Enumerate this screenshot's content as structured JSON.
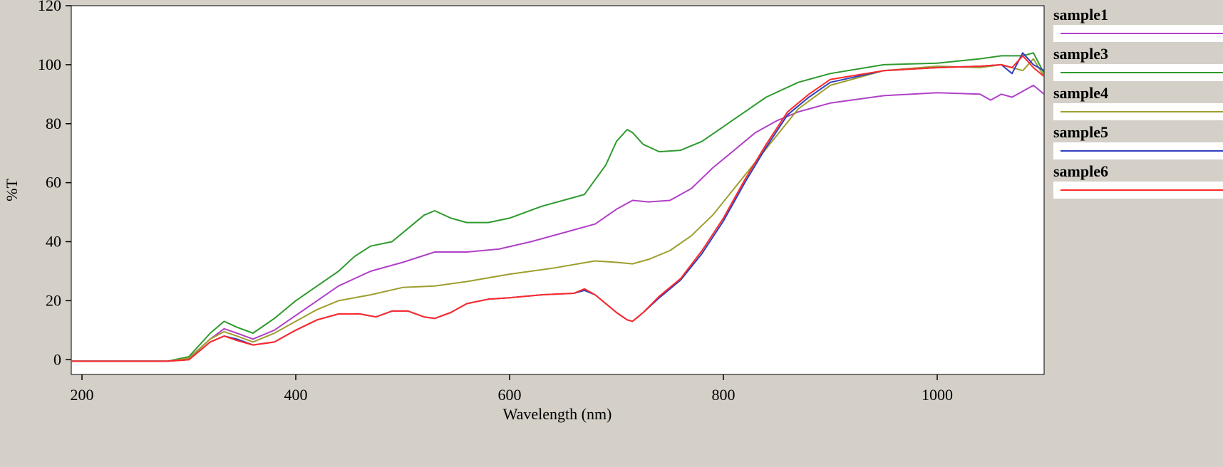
{
  "chart_data": {
    "type": "line",
    "xlabel": "Wavelength (nm)",
    "ylabel": "%T",
    "xlim": [
      190,
      1100
    ],
    "ylim": [
      -5,
      120
    ],
    "xticks": [
      200,
      400,
      600,
      800,
      1000
    ],
    "yticks": [
      0,
      20,
      40,
      60,
      80,
      100,
      120
    ],
    "grid": false,
    "legend_position": "right",
    "series": [
      {
        "name": "sample1",
        "color": "#b040c8",
        "x": [
          190,
          280,
          300,
          320,
          333,
          345,
          360,
          380,
          400,
          420,
          440,
          470,
          500,
          530,
          560,
          590,
          620,
          650,
          680,
          700,
          715,
          730,
          750,
          770,
          790,
          810,
          830,
          850,
          870,
          880,
          900,
          950,
          1000,
          1040,
          1050,
          1060,
          1070,
          1080,
          1090,
          1100
        ],
        "y": [
          -0.5,
          -0.5,
          0.5,
          7,
          10.5,
          9,
          7,
          10,
          15,
          20,
          25,
          30,
          33,
          36.5,
          36.5,
          37.5,
          40,
          43,
          46,
          51,
          54,
          53.5,
          54,
          58,
          65,
          71,
          77,
          81,
          84,
          85,
          87,
          89.5,
          90.5,
          90,
          88,
          90,
          89,
          91,
          93,
          90
        ]
      },
      {
        "name": "sample3",
        "color": "#2e9a2e",
        "x": [
          190,
          280,
          300,
          320,
          333,
          345,
          360,
          380,
          400,
          420,
          440,
          455,
          470,
          490,
          510,
          520,
          530,
          545,
          560,
          580,
          600,
          630,
          660,
          670,
          690,
          700,
          710,
          715,
          725,
          740,
          760,
          780,
          800,
          820,
          840,
          870,
          900,
          950,
          1000,
          1040,
          1060,
          1080,
          1090,
          1100
        ],
        "y": [
          -0.5,
          -0.5,
          1,
          9,
          13,
          11,
          9,
          14,
          20,
          25,
          30,
          35,
          38.5,
          40,
          46,
          49,
          50.5,
          48,
          46.5,
          46.5,
          48,
          52,
          55,
          56,
          66,
          74,
          78,
          77,
          73,
          70.5,
          71,
          74,
          79,
          84,
          89,
          94,
          97,
          100,
          100.5,
          102,
          103,
          103,
          104,
          97
        ]
      },
      {
        "name": "sample4",
        "color": "#9e9e2e",
        "x": [
          190,
          280,
          300,
          320,
          333,
          345,
          360,
          380,
          400,
          420,
          440,
          470,
          500,
          530,
          560,
          600,
          640,
          680,
          700,
          715,
          730,
          750,
          770,
          790,
          810,
          830,
          850,
          870,
          900,
          950,
          1000,
          1040,
          1060,
          1080,
          1090,
          1100
        ],
        "y": [
          -0.5,
          -0.5,
          0.5,
          7,
          9.5,
          8,
          6,
          9,
          13,
          17,
          20,
          22,
          24.5,
          25,
          26.5,
          29,
          31,
          33.5,
          33,
          32.5,
          34,
          37,
          42,
          49,
          58,
          67,
          76,
          85,
          93,
          98,
          99.5,
          99,
          100,
          98,
          102,
          96
        ]
      },
      {
        "name": "sample5",
        "color": "#2f3fbf",
        "x": [
          190,
          280,
          300,
          320,
          333,
          345,
          360,
          380,
          400,
          420,
          440,
          460,
          475,
          490,
          505,
          520,
          530,
          545,
          560,
          580,
          600,
          630,
          660,
          670,
          680,
          690,
          700,
          710,
          715,
          725,
          740,
          760,
          780,
          800,
          820,
          840,
          860,
          880,
          900,
          950,
          1000,
          1040,
          1060,
          1070,
          1080,
          1090,
          1100
        ],
        "y": [
          -0.5,
          -0.5,
          0,
          6,
          8,
          7,
          5,
          6,
          10,
          13.5,
          15.5,
          15.5,
          14.5,
          16.5,
          16.5,
          14.5,
          14,
          16,
          19,
          20.5,
          21,
          22,
          22.5,
          23.5,
          22,
          19,
          16,
          13.5,
          13,
          16,
          21,
          27,
          36,
          47,
          60,
          72,
          83,
          89,
          94,
          98,
          99,
          99.5,
          100,
          97,
          104,
          100,
          98
        ]
      },
      {
        "name": "sample6",
        "color": "#ff2a2a",
        "x": [
          190,
          280,
          300,
          320,
          333,
          345,
          360,
          380,
          400,
          420,
          440,
          460,
          475,
          490,
          505,
          520,
          530,
          545,
          560,
          580,
          600,
          630,
          660,
          670,
          680,
          690,
          700,
          710,
          715,
          725,
          740,
          760,
          780,
          800,
          820,
          840,
          860,
          880,
          900,
          950,
          1000,
          1040,
          1060,
          1070,
          1080,
          1090,
          1100
        ],
        "y": [
          -0.5,
          -0.5,
          0,
          6,
          8,
          6.5,
          5,
          6,
          10,
          13.5,
          15.5,
          15.5,
          14.5,
          16.5,
          16.5,
          14.5,
          14,
          16,
          19,
          20.5,
          21,
          22,
          22.5,
          24,
          22,
          19,
          16,
          13.5,
          13,
          16,
          21.5,
          27.5,
          37,
          48,
          61,
          73,
          84,
          90,
          95,
          98,
          99,
          99.5,
          100,
          99,
          103,
          99,
          96
        ]
      }
    ]
  }
}
